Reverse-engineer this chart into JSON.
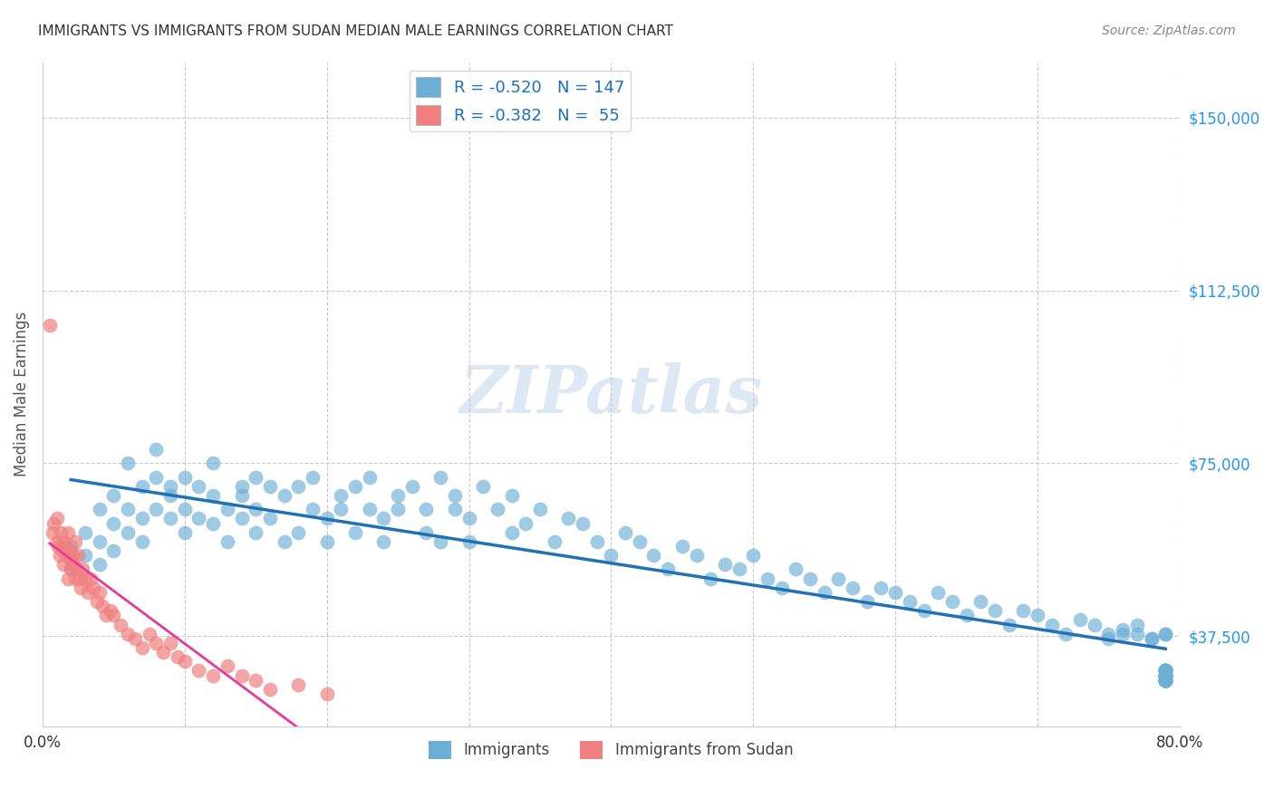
{
  "title": "IMMIGRANTS VS IMMIGRANTS FROM SUDAN MEDIAN MALE EARNINGS CORRELATION CHART",
  "source": "Source: ZipAtlas.com",
  "ylabel": "Median Male Earnings",
  "watermark": "ZIPatlas",
  "xlim": [
    0.0,
    0.8
  ],
  "ylim": [
    18000,
    162000
  ],
  "yticks": [
    37500,
    75000,
    112500,
    150000
  ],
  "ytick_labels": [
    "$37,500",
    "$75,000",
    "$112,500",
    "$150,000"
  ],
  "xticks": [
    0.0,
    0.1,
    0.2,
    0.3,
    0.4,
    0.5,
    0.6,
    0.7,
    0.8
  ],
  "xtick_labels": [
    "0.0%",
    "",
    "",
    "",
    "",
    "",
    "",
    "",
    "80.0%"
  ],
  "series1_color": "#6baed6",
  "series2_color": "#f08080",
  "trend1_color": "#2171b5",
  "trend2_color": "#e8399a",
  "legend1_label": "R = -0.520   N = 147",
  "legend2_label": "R = -0.382   N =  55",
  "legend1_series": "Immigrants",
  "legend2_series": "Immigrants from Sudan",
  "seed": 42,
  "blue_scatter_x": [
    0.02,
    0.02,
    0.03,
    0.03,
    0.04,
    0.04,
    0.04,
    0.05,
    0.05,
    0.05,
    0.06,
    0.06,
    0.06,
    0.07,
    0.07,
    0.07,
    0.08,
    0.08,
    0.08,
    0.09,
    0.09,
    0.09,
    0.1,
    0.1,
    0.1,
    0.11,
    0.11,
    0.12,
    0.12,
    0.12,
    0.13,
    0.13,
    0.14,
    0.14,
    0.14,
    0.15,
    0.15,
    0.15,
    0.16,
    0.16,
    0.17,
    0.17,
    0.18,
    0.18,
    0.19,
    0.19,
    0.2,
    0.2,
    0.21,
    0.21,
    0.22,
    0.22,
    0.23,
    0.23,
    0.24,
    0.24,
    0.25,
    0.25,
    0.26,
    0.27,
    0.27,
    0.28,
    0.28,
    0.29,
    0.29,
    0.3,
    0.3,
    0.31,
    0.32,
    0.33,
    0.33,
    0.34,
    0.35,
    0.36,
    0.37,
    0.38,
    0.39,
    0.4,
    0.41,
    0.42,
    0.43,
    0.44,
    0.45,
    0.46,
    0.47,
    0.48,
    0.49,
    0.5,
    0.51,
    0.52,
    0.53,
    0.54,
    0.55,
    0.56,
    0.57,
    0.58,
    0.59,
    0.6,
    0.61,
    0.62,
    0.63,
    0.64,
    0.65,
    0.66,
    0.67,
    0.68,
    0.69,
    0.7,
    0.71,
    0.72,
    0.73,
    0.74,
    0.75,
    0.75,
    0.76,
    0.76,
    0.77,
    0.77,
    0.78,
    0.78,
    0.79,
    0.79,
    0.79,
    0.79,
    0.79,
    0.79,
    0.79,
    0.79,
    0.79,
    0.79,
    0.79,
    0.79,
    0.79,
    0.79,
    0.79,
    0.79,
    0.79,
    0.79,
    0.79,
    0.79,
    0.79,
    0.79,
    0.79,
    0.79,
    0.79,
    0.79,
    0.79
  ],
  "blue_scatter_y": [
    57000,
    52000,
    60000,
    55000,
    58000,
    53000,
    65000,
    62000,
    56000,
    68000,
    65000,
    60000,
    75000,
    63000,
    58000,
    70000,
    72000,
    65000,
    78000,
    70000,
    63000,
    68000,
    65000,
    72000,
    60000,
    70000,
    63000,
    68000,
    62000,
    75000,
    65000,
    58000,
    70000,
    63000,
    68000,
    72000,
    65000,
    60000,
    63000,
    70000,
    68000,
    58000,
    70000,
    60000,
    65000,
    72000,
    63000,
    58000,
    68000,
    65000,
    70000,
    60000,
    65000,
    72000,
    63000,
    58000,
    68000,
    65000,
    70000,
    60000,
    65000,
    72000,
    58000,
    65000,
    68000,
    63000,
    58000,
    70000,
    65000,
    60000,
    68000,
    62000,
    65000,
    58000,
    63000,
    62000,
    58000,
    55000,
    60000,
    58000,
    55000,
    52000,
    57000,
    55000,
    50000,
    53000,
    52000,
    55000,
    50000,
    48000,
    52000,
    50000,
    47000,
    50000,
    48000,
    45000,
    48000,
    47000,
    45000,
    43000,
    47000,
    45000,
    42000,
    45000,
    43000,
    40000,
    43000,
    42000,
    40000,
    38000,
    41000,
    40000,
    38000,
    37000,
    39000,
    38000,
    38000,
    40000,
    37000,
    37000,
    38000,
    38000,
    28000,
    29000,
    30000,
    28000,
    29000,
    30000,
    28000,
    29000,
    30000,
    28000,
    29000,
    30000,
    28000,
    29000,
    30000,
    28000,
    29000,
    30000,
    28000,
    29000,
    30000,
    28000,
    29000,
    30000,
    28000
  ],
  "pink_scatter_x": [
    0.005,
    0.007,
    0.008,
    0.01,
    0.01,
    0.011,
    0.012,
    0.013,
    0.014,
    0.015,
    0.015,
    0.016,
    0.017,
    0.018,
    0.018,
    0.019,
    0.02,
    0.02,
    0.021,
    0.022,
    0.023,
    0.023,
    0.024,
    0.025,
    0.026,
    0.027,
    0.028,
    0.03,
    0.032,
    0.034,
    0.036,
    0.038,
    0.04,
    0.042,
    0.045,
    0.048,
    0.05,
    0.055,
    0.06,
    0.065,
    0.07,
    0.075,
    0.08,
    0.085,
    0.09,
    0.095,
    0.1,
    0.11,
    0.12,
    0.13,
    0.14,
    0.15,
    0.16,
    0.18,
    0.2
  ],
  "pink_scatter_y": [
    105000,
    60000,
    62000,
    58000,
    63000,
    57000,
    55000,
    60000,
    56000,
    58000,
    53000,
    57000,
    55000,
    60000,
    50000,
    56000,
    54000,
    52000,
    55000,
    53000,
    58000,
    50000,
    52000,
    55000,
    50000,
    48000,
    52000,
    50000,
    47000,
    50000,
    48000,
    45000,
    47000,
    44000,
    42000,
    43000,
    42000,
    40000,
    38000,
    37000,
    35000,
    38000,
    36000,
    34000,
    36000,
    33000,
    32000,
    30000,
    29000,
    31000,
    29000,
    28000,
    26000,
    27000,
    25000
  ]
}
